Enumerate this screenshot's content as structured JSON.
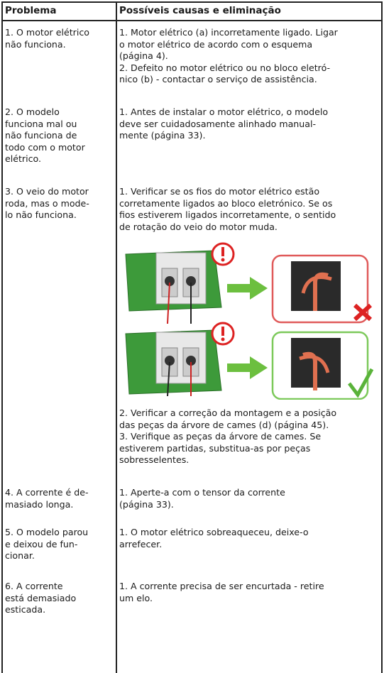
{
  "table": {
    "header": [
      "Problema",
      "Possíveis causas e eliminação"
    ],
    "rows": [
      {
        "problem": [
          "1. O motor elétrico",
          "não funciona."
        ],
        "causes": [
          "1. Motor elétrico (a) incorretamente ligado. Ligar",
          "o motor elétrico de acordo com o esquema",
          "(página 4).",
          "2. Defeito no motor elétrico ou no bloco eletró-",
          "nico (b) - contactar o serviço de assistência."
        ]
      },
      {
        "problem": [
          "2. O modelo",
          "funciona mal ou",
          "não funciona de",
          "todo com o motor",
          "elétrico."
        ],
        "causes": [
          "1. Antes de instalar o motor elétrico, o modelo",
          "deve ser cuidadosamente alinhado manual-",
          "mente (página 33)."
        ]
      },
      {
        "problem": [
          "3. O veio do motor",
          "roda, mas o mode-",
          "lo não funciona."
        ],
        "causes": [
          "1. Verificar se os fios do motor elétrico estão",
          "corretamente ligados ao bloco eletrónico. Se os",
          "fios estiverem ligados incorretamente, o sentido",
          "de rotação do veio do motor muda."
        ],
        "causes_after_figure": [
          "2. Verificar a correção da montagem e a posição",
          "das peças da árvore de cames (d) (página 45).",
          "3. Verifique as peças da árvore de cames. Se",
          "estiverem partidas, substitua-as por peças",
          "sobresselentes."
        ]
      },
      {
        "problem": [
          "4. A corrente é de-",
          "masiado longa."
        ],
        "causes": [
          "1. Aperte-a com o tensor da corrente",
          "(página 33)."
        ]
      },
      {
        "problem": [
          "5. O modelo parou",
          "e deixou de fun-",
          "cionar."
        ],
        "causes": [
          "1. O motor elétrico sobreaqueceu, deixe-o",
          "arrefecer."
        ]
      },
      {
        "problem": [
          "6. A corrente",
          "está demasiado",
          "esticada."
        ],
        "causes": [
          "1. A corrente precisa de ser encurtada - retire",
          "um elo."
        ]
      }
    ]
  }
}
